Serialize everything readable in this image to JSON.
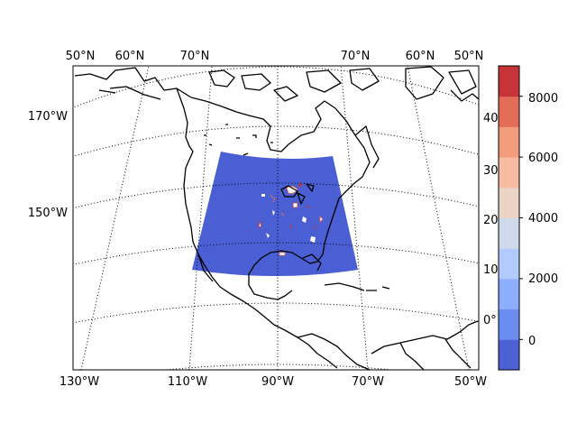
{
  "map": {
    "top_lat_labels": [
      "50°N",
      "60°N",
      "70°N",
      "70°N",
      "60°N",
      "50°N"
    ],
    "bottom_lon_labels": [
      "130°W",
      "110°W",
      "90°W",
      "70°W",
      "50°W"
    ],
    "left_lon_labels": [
      "170°W",
      "150°W"
    ],
    "right_lat_labels": [
      "40°",
      "30°",
      "20°",
      "10°",
      "0°"
    ],
    "graticule_style": "dotted",
    "domain_fill_color": "#4a5fd4",
    "coastline_color": "#000000"
  },
  "colorbar": {
    "tick_labels": [
      "8000",
      "6000",
      "4000",
      "2000",
      "0"
    ],
    "levels": [
      -1000,
      0,
      1000,
      2000,
      3000,
      4000,
      5000,
      6000,
      7000,
      8000,
      9000
    ],
    "colors": [
      "#4b61d4",
      "#6a8bef",
      "#8caefc",
      "#b0cbfc",
      "#cfd9ec",
      "#ebd3c7",
      "#f6bda2",
      "#f39c7e",
      "#e36d57",
      "#c6343a"
    ],
    "colormap": "coolwarm"
  }
}
